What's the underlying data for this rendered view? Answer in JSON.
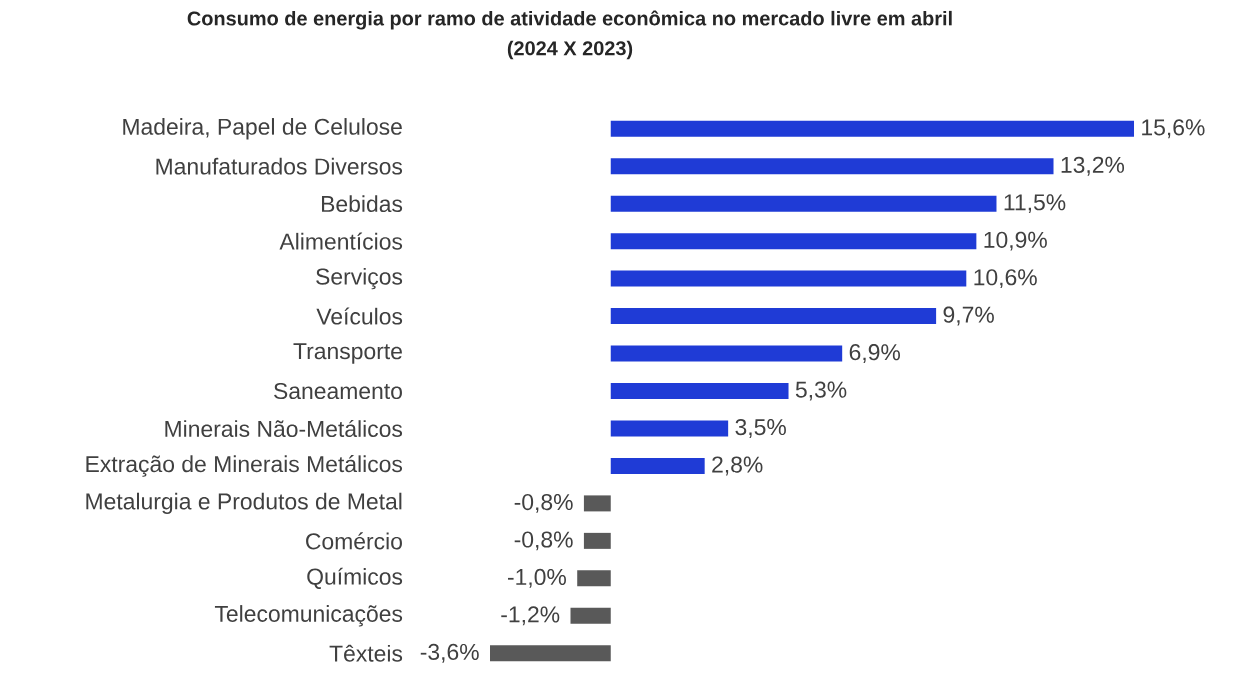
{
  "chart_data": {
    "type": "bar",
    "orientation": "horizontal",
    "title": "Consumo de energia por ramo de atividade econômica no mercado livre em abril",
    "subtitle": "(2024 X 2023)",
    "categories": [
      "Madeira, Papel de Celulose",
      "Manufaturados Diversos",
      "Bebidas",
      "Alimentícios",
      "Serviços",
      "Veículos",
      "Transporte",
      "Saneamento",
      "Minerais Não-Metálicos",
      "Extração de Minerais Metálicos",
      "Metalurgia e Produtos de Metal",
      "Comércio",
      "Químicos",
      "Telecomunicações",
      "Têxteis"
    ],
    "values": [
      15.6,
      13.2,
      11.5,
      10.9,
      10.6,
      9.7,
      6.9,
      5.3,
      3.5,
      2.8,
      -0.8,
      -0.8,
      -1.0,
      -1.2,
      -3.6
    ],
    "value_labels": [
      "15,6%",
      "13,2%",
      "11,5%",
      "10,9%",
      "10,6%",
      "9,7%",
      "6,9%",
      "5,3%",
      "3,5%",
      "2,8%",
      "-0,8%",
      "-0,8%",
      "-1,0%",
      "-1,2%",
      "-3,6%"
    ],
    "colors": [
      "#1f3bd6",
      "#1f3bd6",
      "#1f3bd6",
      "#1f3bd6",
      "#1f3bd6",
      "#1f3bd6",
      "#1f3bd6",
      "#1f3bd6",
      "#1f3bd6",
      "#1f3bd6",
      "#595959",
      "#595959",
      "#595959",
      "#595959",
      "#595959"
    ]
  }
}
